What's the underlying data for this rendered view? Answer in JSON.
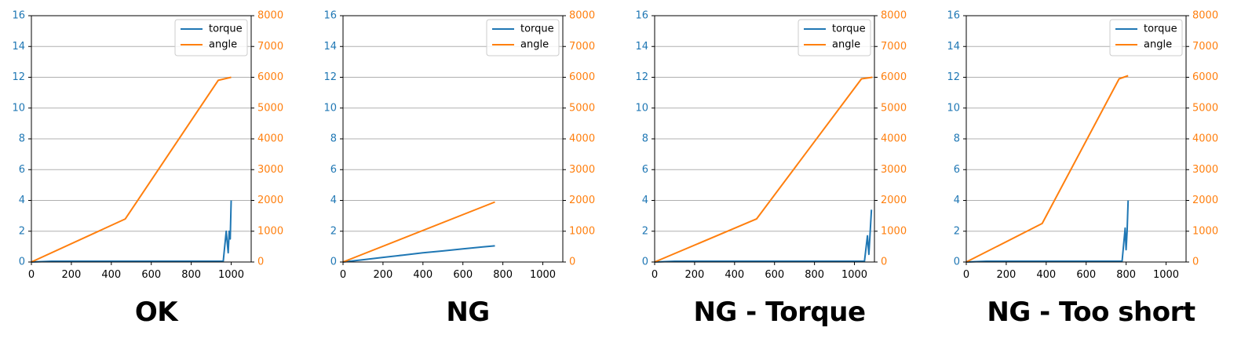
{
  "colors": {
    "torque": "#1f77b4",
    "angle": "#ff7f0e",
    "grid": "#b0b0b0",
    "axis": "#000000"
  },
  "chart_data": [
    {
      "type": "line",
      "title": "OK",
      "xlim": [
        0,
        1100
      ],
      "xticks": [
        0,
        200,
        400,
        600,
        800,
        1000
      ],
      "ylim_left": [
        0,
        16
      ],
      "yticks_left": [
        0,
        2,
        4,
        6,
        8,
        10,
        12,
        14,
        16
      ],
      "ylim_right": [
        0,
        8000
      ],
      "yticks_right": [
        0,
        1000,
        2000,
        3000,
        4000,
        5000,
        6000,
        7000,
        8000
      ],
      "grid": "horizontal",
      "legend_position": "upper right",
      "series": [
        {
          "name": "torque",
          "axis": "left",
          "x": [
            0,
            100,
            200,
            300,
            400,
            500,
            600,
            700,
            800,
            900,
            960,
            975,
            985,
            990,
            995,
            1000
          ],
          "y": [
            0.0,
            0.05,
            0.05,
            0.05,
            0.05,
            0.05,
            0.05,
            0.05,
            0.05,
            0.05,
            0.05,
            2.0,
            0.6,
            2.0,
            1.5,
            4.0
          ]
        },
        {
          "name": "angle",
          "axis": "right",
          "x": [
            0,
            470,
            935,
            1000
          ],
          "y": [
            0,
            1400,
            5900,
            6000
          ]
        }
      ]
    },
    {
      "type": "line",
      "title": "NG",
      "xlim": [
        0,
        1100
      ],
      "xticks": [
        0,
        200,
        400,
        600,
        800,
        1000
      ],
      "ylim_left": [
        0,
        16
      ],
      "yticks_left": [
        0,
        2,
        4,
        6,
        8,
        10,
        12,
        14,
        16
      ],
      "ylim_right": [
        0,
        8000
      ],
      "yticks_right": [
        0,
        1000,
        2000,
        3000,
        4000,
        5000,
        6000,
        7000,
        8000
      ],
      "grid": "horizontal",
      "legend_position": "upper right",
      "series": [
        {
          "name": "torque",
          "axis": "left",
          "x": [
            0,
            100,
            200,
            300,
            400,
            500,
            600,
            700,
            760
          ],
          "y": [
            0.0,
            0.15,
            0.3,
            0.45,
            0.6,
            0.72,
            0.85,
            0.98,
            1.05
          ]
        },
        {
          "name": "angle",
          "axis": "right",
          "x": [
            0,
            760
          ],
          "y": [
            0,
            1950
          ]
        }
      ]
    },
    {
      "type": "line",
      "title": "NG - Torque",
      "xlim": [
        0,
        1100
      ],
      "xticks": [
        0,
        200,
        400,
        600,
        800,
        1000
      ],
      "ylim_left": [
        0,
        16
      ],
      "yticks_left": [
        0,
        2,
        4,
        6,
        8,
        10,
        12,
        14,
        16
      ],
      "ylim_right": [
        0,
        8000
      ],
      "yticks_right": [
        0,
        1000,
        2000,
        3000,
        4000,
        5000,
        6000,
        7000,
        8000
      ],
      "grid": "horizontal",
      "legend_position": "upper right",
      "series": [
        {
          "name": "torque",
          "axis": "left",
          "x": [
            0,
            100,
            200,
            300,
            400,
            500,
            600,
            700,
            800,
            900,
            1000,
            1050,
            1065,
            1072,
            1078,
            1085
          ],
          "y": [
            0.0,
            0.05,
            0.05,
            0.05,
            0.05,
            0.05,
            0.05,
            0.05,
            0.05,
            0.05,
            0.05,
            0.05,
            1.7,
            0.5,
            1.8,
            3.4
          ]
        },
        {
          "name": "angle",
          "axis": "right",
          "x": [
            0,
            510,
            1035,
            1090
          ],
          "y": [
            0,
            1400,
            5950,
            6000
          ]
        }
      ]
    },
    {
      "type": "line",
      "title": "NG - Too short",
      "xlim": [
        0,
        1100
      ],
      "xticks": [
        0,
        200,
        400,
        600,
        800,
        1000
      ],
      "ylim_left": [
        0,
        16
      ],
      "yticks_left": [
        0,
        2,
        4,
        6,
        8,
        10,
        12,
        14,
        16
      ],
      "ylim_right": [
        0,
        8000
      ],
      "yticks_right": [
        0,
        1000,
        2000,
        3000,
        4000,
        5000,
        6000,
        7000,
        8000
      ],
      "grid": "horizontal",
      "legend_position": "upper right",
      "series": [
        {
          "name": "torque",
          "axis": "left",
          "x": [
            0,
            100,
            200,
            300,
            400,
            500,
            600,
            700,
            780,
            795,
            800,
            805,
            810
          ],
          "y": [
            0.0,
            0.05,
            0.05,
            0.05,
            0.05,
            0.05,
            0.05,
            0.05,
            0.05,
            2.2,
            0.8,
            2.0,
            4.0
          ]
        },
        {
          "name": "angle",
          "axis": "right",
          "x": [
            0,
            380,
            765,
            810
          ],
          "y": [
            0,
            1250,
            5950,
            6050
          ]
        }
      ]
    }
  ]
}
